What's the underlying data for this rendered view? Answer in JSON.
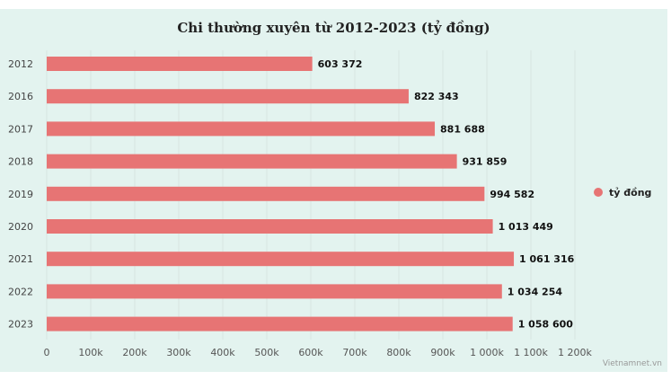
{
  "chart_data": {
    "type": "bar",
    "orientation": "horizontal",
    "title": "Chi thường xuyên từ 2012-2023 (tỷ đồng)",
    "categories": [
      "2012",
      "2016",
      "2017",
      "2018",
      "2019",
      "2020",
      "2021",
      "2022",
      "2023"
    ],
    "series": [
      {
        "name": "tỷ đồng",
        "values": [
          603372,
          822343,
          881688,
          931859,
          994582,
          1013449,
          1061316,
          1034254,
          1058600
        ],
        "value_labels": [
          "603 372",
          "822 343",
          "881 688",
          "931 859",
          "994 582",
          "1 013 449",
          "1 061 316",
          "1 034 254",
          "1 058 600"
        ]
      }
    ],
    "x_ticks": [
      0,
      100000,
      200000,
      300000,
      400000,
      500000,
      600000,
      700000,
      800000,
      900000,
      1000000,
      1100000,
      1200000
    ],
    "x_tick_labels": [
      "0",
      "100k",
      "200k",
      "300k",
      "400k",
      "500k",
      "600k",
      "700k",
      "800k",
      "900k",
      "1 000k",
      "1 100k",
      "1 200k"
    ],
    "xlim": [
      0,
      1200000
    ],
    "grid": true,
    "legend_position": "right"
  },
  "colors": {
    "bar": "#e77474",
    "background": "#e3f3ef",
    "grid": "#d7e6e2"
  },
  "credit": "Vietnamnet.vn"
}
